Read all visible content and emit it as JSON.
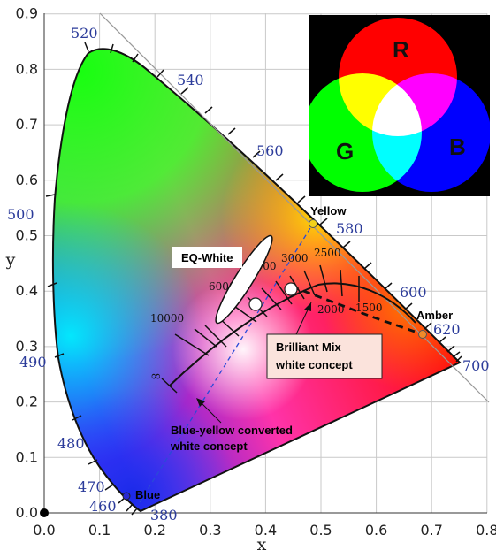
{
  "axes": {
    "x_title": "x",
    "y_title": "y",
    "x_ticks": [
      "0.0",
      "0.1",
      "0.2",
      "0.3",
      "0.4",
      "0.5",
      "0.6",
      "0.7",
      "0.8"
    ],
    "y_ticks": [
      "0.0",
      "0.1",
      "0.2",
      "0.3",
      "0.4",
      "0.5",
      "0.6",
      "0.7",
      "0.8",
      "0.9"
    ],
    "xlim": [
      0,
      0.8
    ],
    "ylim": [
      0,
      0.9
    ],
    "grid": true
  },
  "wavelengths": {
    "nm380": "380",
    "nm460": "460",
    "nm470": "470",
    "nm480": "480",
    "nm490": "490",
    "nm500": "500",
    "nm520": "520",
    "nm540": "540",
    "nm560": "560",
    "nm580": "580",
    "nm600": "600",
    "nm620": "620",
    "nm700": "700"
  },
  "cct_labels": {
    "k10000": "10000",
    "k6000": "6000",
    "k4000": "4000",
    "k3000": "3000",
    "k2500": "2500",
    "k2000": "2000",
    "k1500": "1500",
    "infinity": "∞"
  },
  "points": {
    "blue": {
      "label": "Blue",
      "x": 0.15,
      "y": 0.03,
      "color": "#2a2ad0"
    },
    "yellow": {
      "label": "Yellow",
      "x": 0.48,
      "y": 0.51,
      "color": "#f2d21a"
    },
    "amber": {
      "label": "Amber",
      "x": 0.67,
      "y": 0.33,
      "color": "#f08a2a"
    }
  },
  "annotations": {
    "eq_white": "EQ-White",
    "brilliant_mix_line1": "Brilliant Mix",
    "brilliant_mix_line2": "white concept",
    "blue_yellow_line1": "Blue-yellow converted",
    "blue_yellow_line2": "white concept"
  },
  "inset": {
    "r": "R",
    "g": "G",
    "b": "B",
    "colors": {
      "red": "#ff0000",
      "green": "#00ff00",
      "blue": "#0000ff",
      "background": "#000000"
    }
  }
}
